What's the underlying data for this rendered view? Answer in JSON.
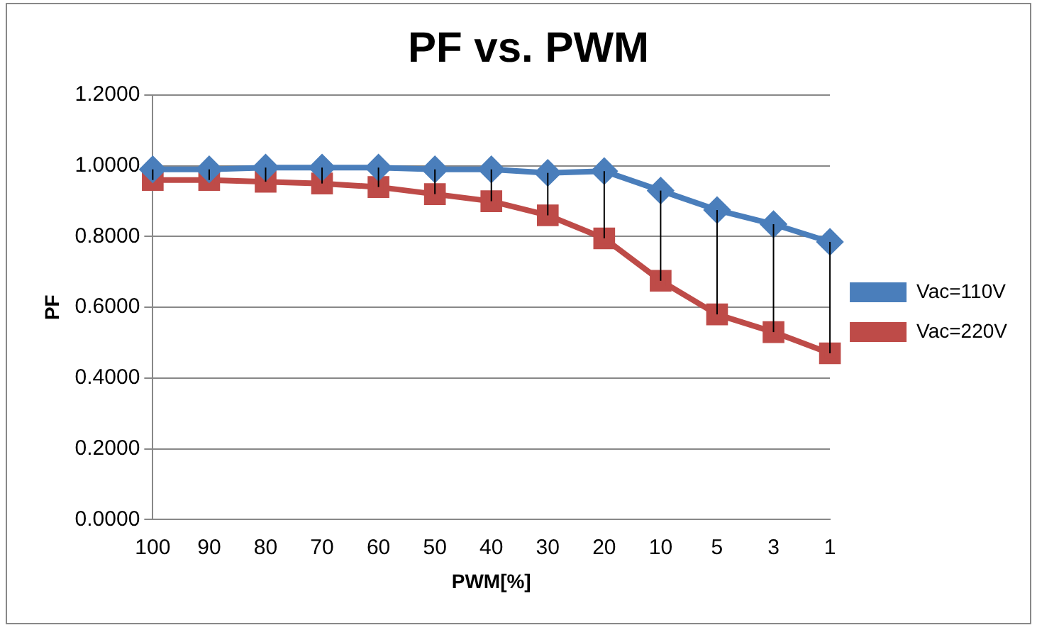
{
  "chart_data": {
    "type": "line",
    "title": "PF vs. PWM",
    "xlabel": "PWM[%]",
    "ylabel": "PF",
    "categories": [
      "100",
      "90",
      "80",
      "70",
      "60",
      "50",
      "40",
      "30",
      "20",
      "10",
      "5",
      "3",
      "1"
    ],
    "series": [
      {
        "name": "Vac=110V",
        "color": "#4a7ebb",
        "marker": "diamond",
        "values": [
          0.99,
          0.99,
          0.995,
          0.995,
          0.995,
          0.99,
          0.99,
          0.98,
          0.985,
          0.93,
          0.875,
          0.835,
          0.785
        ],
        "errors": [
          [
            0.96,
            0.99
          ],
          [
            0.96,
            0.99
          ],
          [
            0.955,
            0.995
          ],
          [
            0.95,
            0.995
          ],
          [
            0.94,
            0.995
          ],
          [
            0.92,
            0.99
          ],
          [
            0.9,
            0.99
          ],
          [
            0.86,
            0.98
          ],
          [
            0.795,
            0.985
          ],
          [
            0.675,
            0.93
          ],
          [
            0.58,
            0.875
          ],
          [
            0.53,
            0.835
          ],
          [
            0.47,
            0.785
          ]
        ]
      },
      {
        "name": "Vac=220V",
        "color": "#be4b48",
        "marker": "square",
        "values": [
          0.96,
          0.96,
          0.955,
          0.95,
          0.94,
          0.92,
          0.9,
          0.86,
          0.795,
          0.675,
          0.58,
          0.53,
          0.47
        ]
      }
    ],
    "ylim": [
      0,
      1.2
    ],
    "yticks": [
      {
        "value": 0,
        "label": "0.0000"
      },
      {
        "value": 0.2,
        "label": "0.2000"
      },
      {
        "value": 0.4,
        "label": "0.4000"
      },
      {
        "value": 0.6,
        "label": "0.6000"
      },
      {
        "value": 0.8,
        "label": "0.8000"
      },
      {
        "value": 1,
        "label": "1.0000"
      },
      {
        "value": 1.2,
        "label": "1.2000"
      }
    ],
    "grid": "y",
    "legend": "right"
  }
}
